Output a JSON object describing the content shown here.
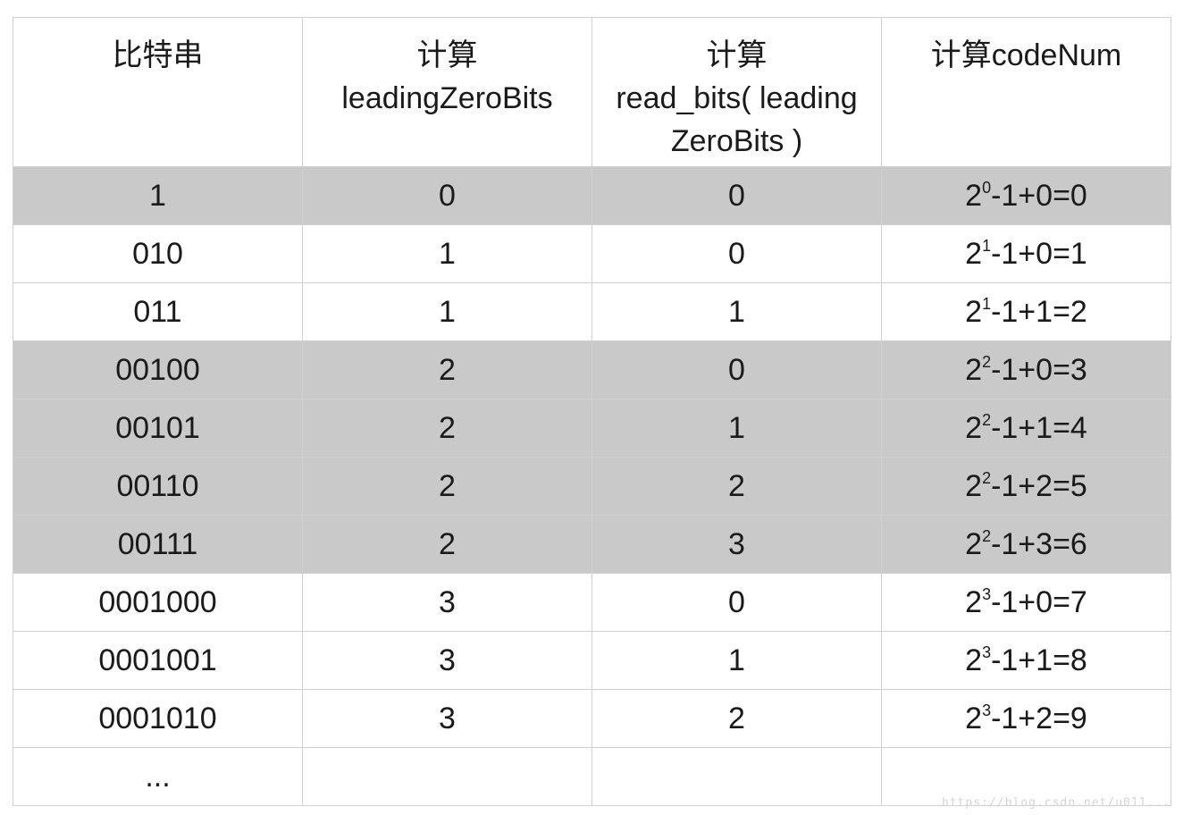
{
  "headers": [
    {
      "lines": [
        "比特串"
      ]
    },
    {
      "lines": [
        "计算",
        "leadingZeroBits"
      ]
    },
    {
      "lines": [
        "计算",
        "read_bits( leading",
        "ZeroBits )"
      ]
    },
    {
      "lines": [
        "计算codeNum"
      ]
    }
  ],
  "rows": [
    {
      "bits": "1",
      "lzb": "0",
      "read": "0",
      "base": "2",
      "exp": "0",
      "rest": "-1+0=0",
      "shaded": true
    },
    {
      "bits": "010",
      "lzb": "1",
      "read": "0",
      "base": "2",
      "exp": "1",
      "rest": "-1+0=1",
      "shaded": false
    },
    {
      "bits": "011",
      "lzb": "1",
      "read": "1",
      "base": "2",
      "exp": "1",
      "rest": "-1+1=2",
      "shaded": false
    },
    {
      "bits": "00100",
      "lzb": "2",
      "read": "0",
      "base": "2",
      "exp": "2",
      "rest": "-1+0=3",
      "shaded": true
    },
    {
      "bits": "00101",
      "lzb": "2",
      "read": "1",
      "base": "2",
      "exp": "2",
      "rest": "-1+1=4",
      "shaded": true
    },
    {
      "bits": "00110",
      "lzb": "2",
      "read": "2",
      "base": "2",
      "exp": "2",
      "rest": "-1+2=5",
      "shaded": true
    },
    {
      "bits": "00111",
      "lzb": "2",
      "read": "3",
      "base": "2",
      "exp": "2",
      "rest": "-1+3=6",
      "shaded": true
    },
    {
      "bits": "0001000",
      "lzb": "3",
      "read": "0",
      "base": "2",
      "exp": "3",
      "rest": "-1+0=7",
      "shaded": false
    },
    {
      "bits": "0001001",
      "lzb": "3",
      "read": "1",
      "base": "2",
      "exp": "3",
      "rest": "-1+1=8",
      "shaded": false
    },
    {
      "bits": "0001010",
      "lzb": "3",
      "read": "2",
      "base": "2",
      "exp": "3",
      "rest": "-1+2=9",
      "shaded": false
    }
  ],
  "ellipsis": "...",
  "watermark": "https://blog.csdn.net/u011..."
}
